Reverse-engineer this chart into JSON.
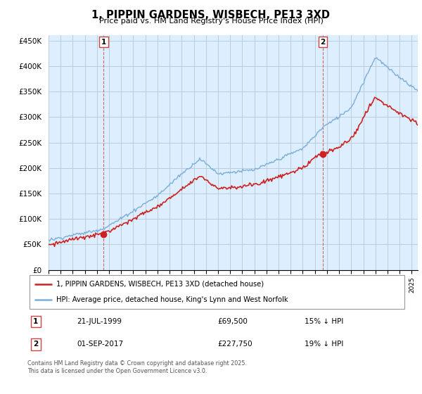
{
  "title": "1, PIPPIN GARDENS, WISBECH, PE13 3XD",
  "subtitle": "Price paid vs. HM Land Registry's House Price Index (HPI)",
  "legend_line1": "1, PIPPIN GARDENS, WISBECH, PE13 3XD (detached house)",
  "legend_line2": "HPI: Average price, detached house, King's Lynn and West Norfolk",
  "footer": "Contains HM Land Registry data © Crown copyright and database right 2025.\nThis data is licensed under the Open Government Licence v3.0.",
  "sale1_label": "1",
  "sale1_date": "21-JUL-1999",
  "sale1_price": "£69,500",
  "sale1_hpi": "15% ↓ HPI",
  "sale2_label": "2",
  "sale2_date": "01-SEP-2017",
  "sale2_price": "£227,750",
  "sale2_hpi": "19% ↓ HPI",
  "sale1_year": 1999.55,
  "sale1_value": 69500,
  "sale2_year": 2017.67,
  "sale2_value": 227750,
  "hpi_color": "#7aadda",
  "price_color": "#cc2222",
  "background_color": "#ffffff",
  "plot_bg_color": "#ddeeff",
  "grid_color": "#bbccdd",
  "ylim": [
    0,
    460000
  ],
  "xlim_start": 1995,
  "xlim_end": 2025.5,
  "yticks": [
    0,
    50000,
    100000,
    150000,
    200000,
    250000,
    300000,
    350000,
    400000,
    450000
  ],
  "ytick_labels": [
    "£0",
    "£50K",
    "£100K",
    "£150K",
    "£200K",
    "£250K",
    "£300K",
    "£350K",
    "£400K",
    "£450K"
  ],
  "xticks": [
    1995,
    1996,
    1997,
    1998,
    1999,
    2000,
    2001,
    2002,
    2003,
    2004,
    2005,
    2006,
    2007,
    2008,
    2009,
    2010,
    2011,
    2012,
    2013,
    2014,
    2015,
    2016,
    2017,
    2018,
    2019,
    2020,
    2021,
    2022,
    2023,
    2024,
    2025
  ]
}
